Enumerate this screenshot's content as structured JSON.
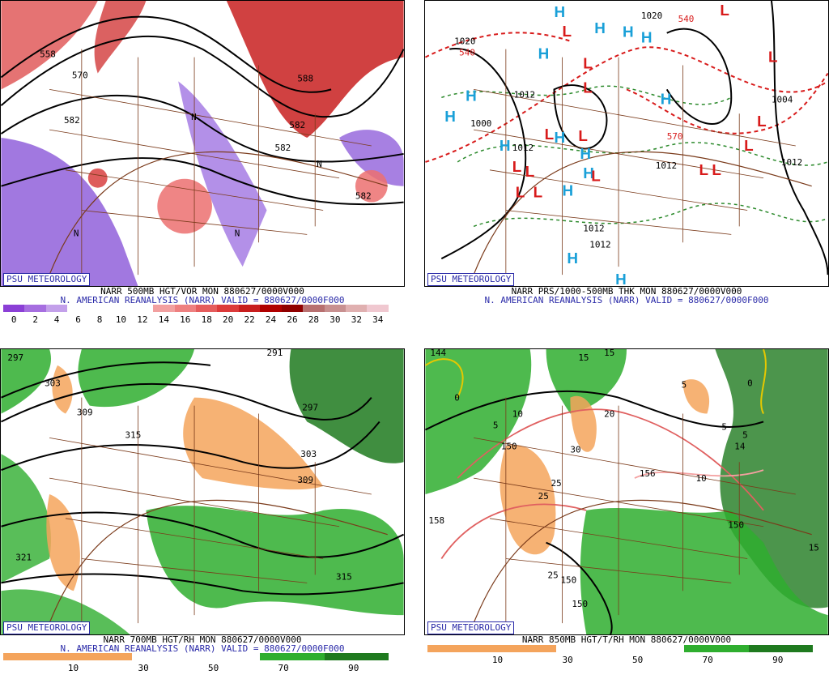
{
  "panels": [
    {
      "id": "tl",
      "badge": "PSU METEOROLOGY",
      "line1": "NARR 500MB HGT/VOR MON 880627/0000V000",
      "line2": "N. AMERICAN REANALYSIS (NARR) VALID = 880627/0000F000",
      "colorbar": {
        "ticks": [
          "0",
          "2",
          "4",
          "6",
          "8",
          "10",
          "12",
          "14",
          "16",
          "18",
          "20",
          "22",
          "24",
          "26",
          "28",
          "30",
          "32",
          "34"
        ],
        "colors": [
          "#8b3fd6",
          "#a66ee0",
          "#c3a0ea",
          "#ffffff",
          "#ffffff",
          "#ffffff",
          "#ffffff",
          "#f2a0a0",
          "#ee8080",
          "#e55c5c",
          "#dc3a3a",
          "#c81e1e",
          "#b00000",
          "#900000",
          "#b87070",
          "#c89090",
          "#e0b0b0",
          "#f0c8d0"
        ]
      },
      "map_labels": [
        "558",
        "570",
        "582",
        "582",
        "582",
        "588",
        "582",
        "N",
        "N",
        "N",
        "N"
      ]
    },
    {
      "id": "tr",
      "badge": "PSU METEOROLOGY",
      "line1": "NARR PRS/1000-500MB THK MON 880627/0000V000",
      "line2": "N. AMERICAN REANALYSIS (NARR) VALID = 880627/0000F000",
      "map_labels": [
        "1020",
        "540",
        "1012",
        "1000",
        "1012",
        "1012",
        "1012",
        "1012",
        "1012",
        "1004",
        "1020",
        "570",
        "540"
      ],
      "high_label": "H",
      "low_label": "L"
    },
    {
      "id": "bl",
      "badge": "PSU METEOROLOGY",
      "line1": "NARR 700MB HGT/RH MON 880627/0000V000",
      "line2": "N. AMERICAN REANALYSIS (NARR) VALID = 880627/0000F000",
      "colorbar": {
        "ticks": [
          "10",
          "30",
          "50",
          "70",
          "90"
        ],
        "colors": [
          "#f4a45c",
          "#f4a45c",
          "#ffffff",
          "#ffffff",
          "#2fae2f",
          "#1f7a1f"
        ]
      },
      "map_labels": [
        "297",
        "303",
        "309",
        "315",
        "321",
        "291",
        "297",
        "303",
        "309",
        "315"
      ]
    },
    {
      "id": "br",
      "badge": "PSU METEOROLOGY",
      "line1": "NARR 850MB HGT/T/RH MON 880627/0000V000",
      "line2": "",
      "colorbar": {
        "ticks": [
          "10",
          "30",
          "50",
          "70",
          "90"
        ],
        "colors": [
          "#f4a45c",
          "#f4a45c",
          "#ffffff",
          "#ffffff",
          "#2fae2f",
          "#1f7a1f"
        ]
      },
      "map_labels": [
        "144",
        "0",
        "15",
        "10",
        "5",
        "20",
        "30",
        "25",
        "25",
        "156",
        "150",
        "158",
        "150",
        "150",
        "25",
        "10",
        "15",
        "5",
        "5",
        "0",
        "150",
        "14",
        "15",
        "5"
      ]
    }
  ]
}
